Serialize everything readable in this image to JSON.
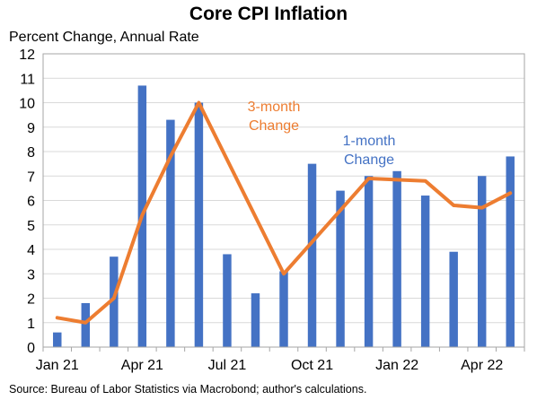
{
  "chart_data": {
    "type": "bar",
    "title": "Core CPI Inflation",
    "ylabel": "Percent Change, Annual Rate",
    "source": "Source: Bureau of Labor Statistics via Macrobond; author's calculations.",
    "ylim": [
      0,
      12
    ],
    "yticks": [
      "0",
      "1",
      "2",
      "3",
      "4",
      "5",
      "6",
      "7",
      "8",
      "9",
      "10",
      "11",
      "12"
    ],
    "grid": true,
    "x_tick_labels": [
      {
        "index": 0,
        "label": "Jan 21"
      },
      {
        "index": 3,
        "label": "Apr 21"
      },
      {
        "index": 6,
        "label": "Jul 21"
      },
      {
        "index": 9,
        "label": "Oct 21"
      },
      {
        "index": 12,
        "label": "Jan 22"
      },
      {
        "index": 15,
        "label": "Apr 22"
      }
    ],
    "categories": [
      "Jan 21",
      "Feb 21",
      "Mar 21",
      "Apr 21",
      "May 21",
      "Jun 21",
      "Jul 21",
      "Aug 21",
      "Sep 21",
      "Oct 21",
      "Nov 21",
      "Dec 21",
      "Jan 22",
      "Feb 22",
      "Mar 22",
      "Apr 22",
      "May 22"
    ],
    "series": [
      {
        "name": "1-month Change",
        "kind": "bar",
        "color": "#4472C4",
        "values": [
          0.6,
          1.8,
          3.7,
          10.7,
          9.3,
          10.0,
          3.8,
          2.2,
          3.1,
          7.5,
          6.4,
          7.0,
          7.2,
          6.2,
          3.9,
          7.0,
          7.8
        ]
      },
      {
        "name": "3-month Change",
        "kind": "line",
        "color": "#ED7D31",
        "values": [
          1.2,
          1.0,
          2.0,
          5.4,
          7.8,
          10.0,
          null,
          null,
          3.0,
          4.3,
          5.6,
          6.9,
          6.85,
          6.8,
          5.8,
          5.7,
          6.3
        ]
      }
    ],
    "annotations": [
      {
        "series": "3-month Change",
        "lines": [
          "3-month",
          "Change"
        ],
        "color": "#ED7D31"
      },
      {
        "series": "1-month Change",
        "lines": [
          "1-month",
          "Change"
        ],
        "color": "#4472C4"
      }
    ]
  }
}
